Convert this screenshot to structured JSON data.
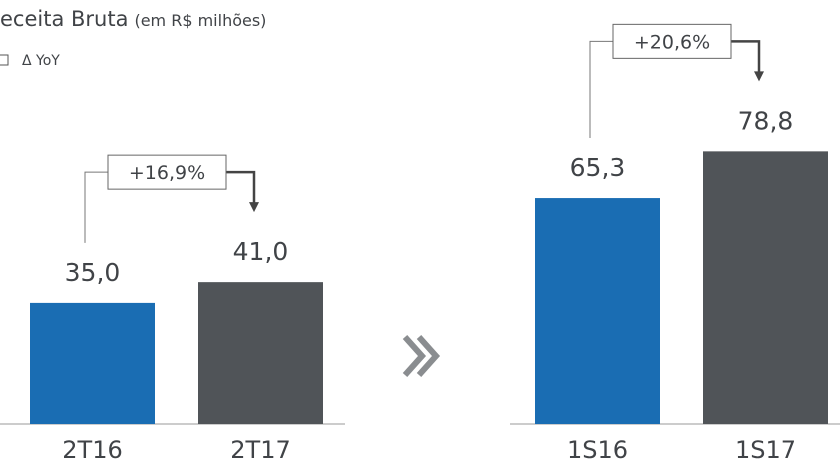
{
  "header": {
    "title": "eceita Bruta",
    "subtitle": "(em R$ milhões)",
    "legend": "Δ YoY"
  },
  "chart_data": [
    {
      "type": "bar",
      "categories": [
        "2T16",
        "2T17"
      ],
      "values": [
        35.0,
        41.0
      ],
      "value_labels": [
        "35,0",
        "41,0"
      ],
      "colors": [
        "#1a6db3",
        "#505458"
      ],
      "annotation": "+16,9%"
    },
    {
      "type": "bar",
      "categories": [
        "1S16",
        "1S17"
      ],
      "values": [
        65.3,
        78.8
      ],
      "value_labels": [
        "65,3",
        "78,8"
      ],
      "colors": [
        "#1a6db3",
        "#505458"
      ],
      "annotation": "+20,6%"
    }
  ]
}
